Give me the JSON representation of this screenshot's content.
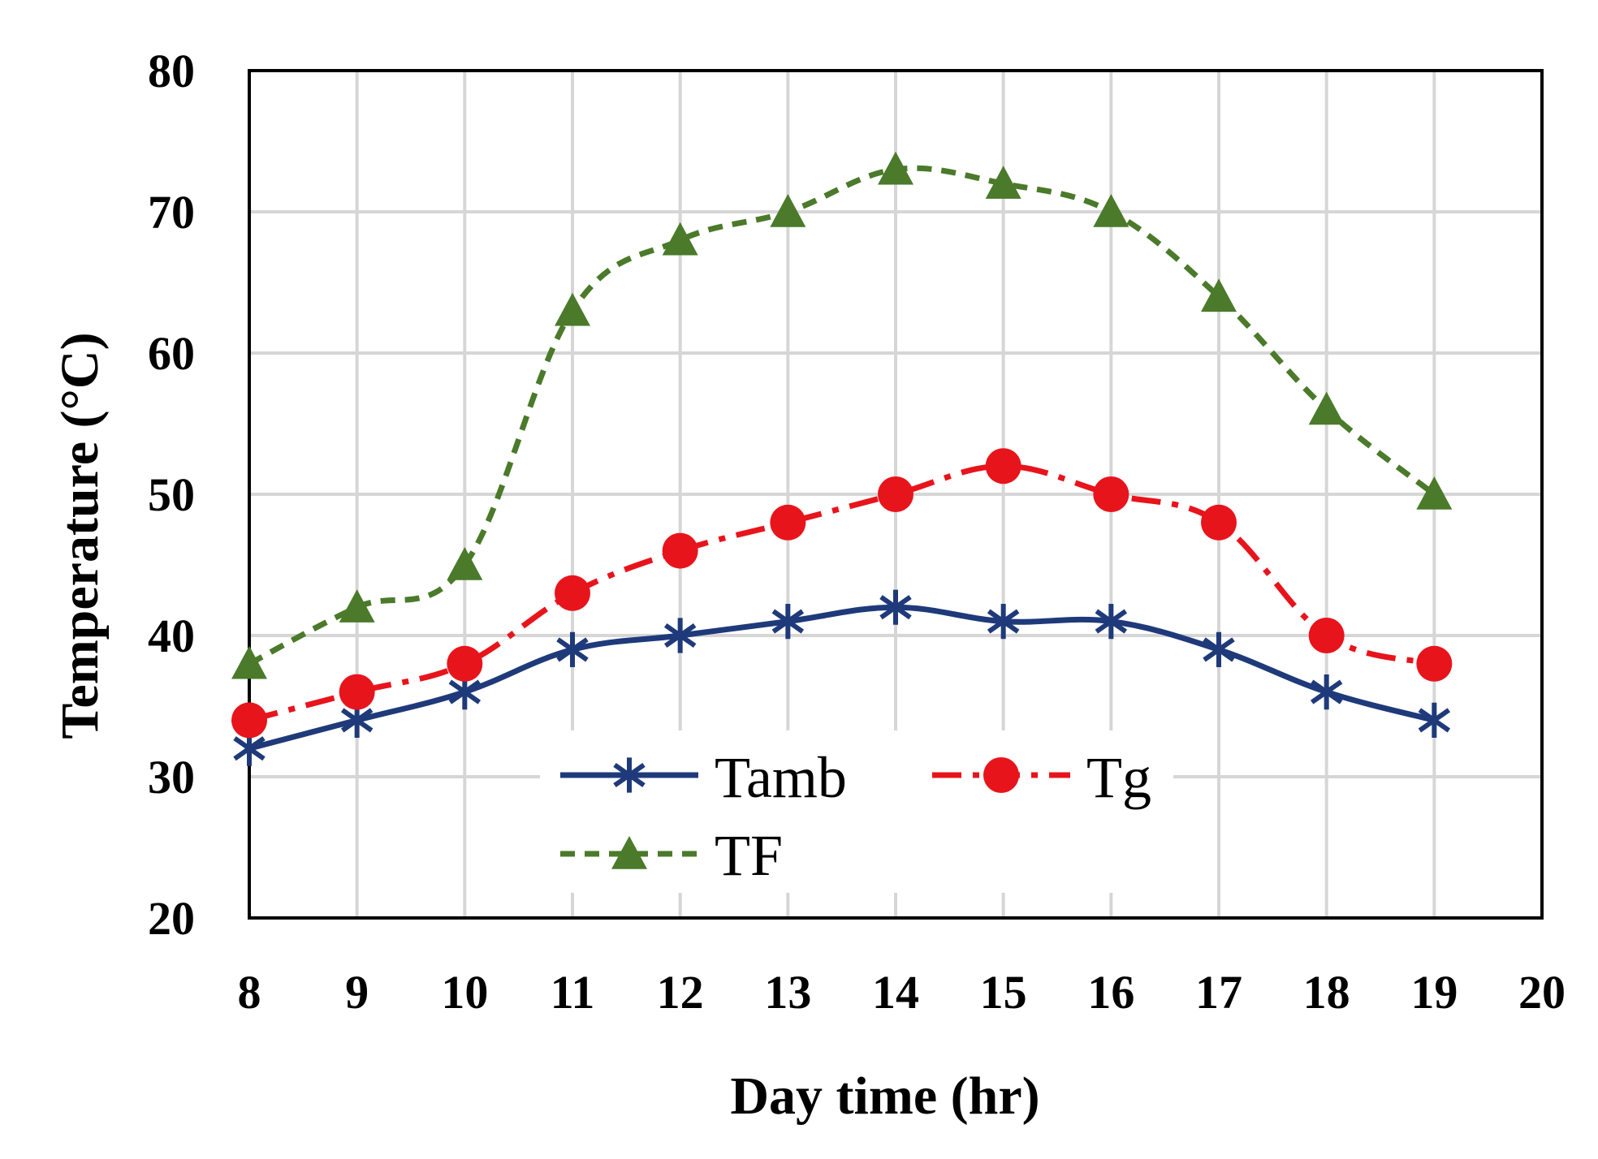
{
  "chart_data": {
    "type": "line",
    "title": "",
    "xlabel": "Day time (hr)",
    "ylabel": "Temperature (°C)",
    "xlim": [
      8,
      20
    ],
    "ylim": [
      20,
      80
    ],
    "x_ticks": [
      "8",
      "9",
      "10",
      "11",
      "12",
      "13",
      "14",
      "15",
      "16",
      "17",
      "18",
      "19",
      "20"
    ],
    "y_ticks": [
      "20",
      "30",
      "40",
      "50",
      "60",
      "70",
      "80"
    ],
    "grid": true,
    "legend_position": "bottom-center",
    "x": [
      8,
      9,
      10,
      11,
      12,
      13,
      14,
      15,
      16,
      17,
      18,
      19
    ],
    "series": [
      {
        "name": "Tamb",
        "values": [
          32,
          34,
          36,
          39,
          40,
          41,
          42,
          41,
          41,
          39,
          36,
          34
        ],
        "color": "#1f3a7a",
        "marker": "asterisk",
        "line_style": "solid"
      },
      {
        "name": "Tg",
        "values": [
          34,
          36,
          38,
          43,
          46,
          48,
          50,
          52,
          50,
          48,
          40,
          38
        ],
        "color": "#e8141c",
        "marker": "circle",
        "line_style": "dash-dot"
      },
      {
        "name": "TF",
        "values": [
          38,
          42,
          45,
          63,
          68,
          70,
          73,
          72,
          70,
          64,
          56,
          50
        ],
        "color": "#4a7a2a",
        "marker": "triangle",
        "line_style": "dashed"
      }
    ]
  }
}
